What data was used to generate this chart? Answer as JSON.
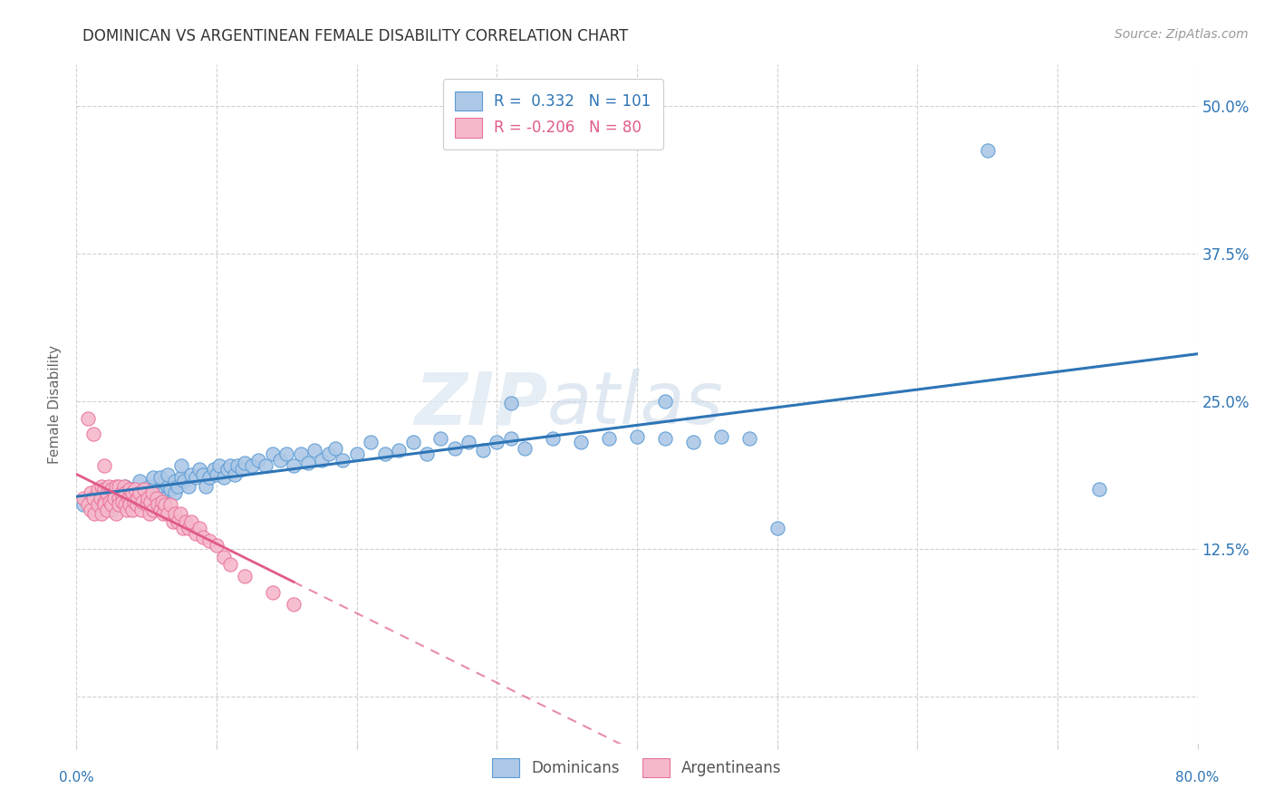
{
  "title": "DOMINICAN VS ARGENTINEAN FEMALE DISABILITY CORRELATION CHART",
  "source": "Source: ZipAtlas.com",
  "ylabel": "Female Disability",
  "yticks": [
    0.0,
    0.125,
    0.25,
    0.375,
    0.5
  ],
  "ytick_labels": [
    "",
    "12.5%",
    "25.0%",
    "37.5%",
    "50.0%"
  ],
  "xlim": [
    0.0,
    0.8
  ],
  "ylim": [
    -0.04,
    0.535
  ],
  "dominican_R": 0.332,
  "dominican_N": 101,
  "argentinean_R": -0.206,
  "argentinean_N": 80,
  "dominican_color": "#adc8e6",
  "argentinean_color": "#f5b8cb",
  "dominican_edge_color": "#5b9bd5",
  "argentinean_edge_color": "#e8739a",
  "dominican_line_color": "#2e75b6",
  "argentinean_line_color": "#e05a8a",
  "watermark_zip": "ZIP",
  "watermark_atlas": "atlas",
  "background_color": "#ffffff",
  "legend_label1": "R =  0.332   N = 101",
  "legend_label2": "R = -0.206   N = 80",
  "dominican_x": [
    0.005,
    0.01,
    0.015,
    0.015,
    0.02,
    0.022,
    0.025,
    0.025,
    0.03,
    0.03,
    0.032,
    0.035,
    0.035,
    0.037,
    0.038,
    0.04,
    0.04,
    0.042,
    0.044,
    0.045,
    0.045,
    0.047,
    0.048,
    0.05,
    0.05,
    0.052,
    0.053,
    0.055,
    0.055,
    0.057,
    0.058,
    0.06,
    0.06,
    0.062,
    0.063,
    0.065,
    0.065,
    0.067,
    0.07,
    0.07,
    0.072,
    0.075,
    0.075,
    0.077,
    0.08,
    0.082,
    0.085,
    0.088,
    0.09,
    0.092,
    0.095,
    0.098,
    0.1,
    0.102,
    0.105,
    0.108,
    0.11,
    0.113,
    0.115,
    0.118,
    0.12,
    0.125,
    0.13,
    0.135,
    0.14,
    0.145,
    0.15,
    0.155,
    0.16,
    0.165,
    0.17,
    0.175,
    0.18,
    0.185,
    0.19,
    0.2,
    0.21,
    0.22,
    0.23,
    0.24,
    0.25,
    0.26,
    0.27,
    0.28,
    0.29,
    0.3,
    0.31,
    0.32,
    0.34,
    0.36,
    0.38,
    0.4,
    0.42,
    0.44,
    0.46,
    0.48,
    0.31,
    0.5,
    0.65,
    0.73,
    0.42
  ],
  "dominican_y": [
    0.162,
    0.168,
    0.165,
    0.158,
    0.162,
    0.17,
    0.158,
    0.172,
    0.165,
    0.175,
    0.162,
    0.168,
    0.178,
    0.162,
    0.172,
    0.165,
    0.175,
    0.168,
    0.162,
    0.172,
    0.182,
    0.168,
    0.175,
    0.162,
    0.172,
    0.178,
    0.168,
    0.175,
    0.185,
    0.172,
    0.165,
    0.175,
    0.185,
    0.172,
    0.168,
    0.178,
    0.188,
    0.175,
    0.172,
    0.182,
    0.178,
    0.185,
    0.195,
    0.182,
    0.178,
    0.188,
    0.185,
    0.192,
    0.188,
    0.178,
    0.185,
    0.192,
    0.188,
    0.195,
    0.185,
    0.192,
    0.195,
    0.188,
    0.195,
    0.192,
    0.198,
    0.195,
    0.2,
    0.195,
    0.205,
    0.2,
    0.205,
    0.195,
    0.205,
    0.198,
    0.208,
    0.2,
    0.205,
    0.21,
    0.2,
    0.205,
    0.215,
    0.205,
    0.208,
    0.215,
    0.205,
    0.218,
    0.21,
    0.215,
    0.208,
    0.215,
    0.218,
    0.21,
    0.218,
    0.215,
    0.218,
    0.22,
    0.218,
    0.215,
    0.22,
    0.218,
    0.248,
    0.142,
    0.462,
    0.175,
    0.25
  ],
  "argentinean_x": [
    0.005,
    0.008,
    0.01,
    0.01,
    0.012,
    0.013,
    0.015,
    0.015,
    0.017,
    0.018,
    0.018,
    0.02,
    0.02,
    0.02,
    0.022,
    0.022,
    0.023,
    0.024,
    0.025,
    0.025,
    0.027,
    0.028,
    0.028,
    0.03,
    0.03,
    0.03,
    0.032,
    0.033,
    0.034,
    0.035,
    0.035,
    0.036,
    0.037,
    0.038,
    0.038,
    0.04,
    0.04,
    0.041,
    0.042,
    0.043,
    0.044,
    0.045,
    0.046,
    0.047,
    0.048,
    0.05,
    0.051,
    0.052,
    0.053,
    0.054,
    0.055,
    0.057,
    0.058,
    0.06,
    0.061,
    0.062,
    0.063,
    0.065,
    0.067,
    0.069,
    0.07,
    0.072,
    0.074,
    0.076,
    0.078,
    0.08,
    0.082,
    0.085,
    0.088,
    0.09,
    0.095,
    0.1,
    0.105,
    0.11,
    0.12,
    0.14,
    0.155,
    0.008,
    0.012,
    0.02
  ],
  "argentinean_y": [
    0.168,
    0.162,
    0.172,
    0.158,
    0.168,
    0.155,
    0.175,
    0.162,
    0.168,
    0.178,
    0.155,
    0.165,
    0.175,
    0.162,
    0.172,
    0.158,
    0.178,
    0.165,
    0.175,
    0.162,
    0.168,
    0.178,
    0.155,
    0.168,
    0.178,
    0.162,
    0.172,
    0.165,
    0.178,
    0.162,
    0.172,
    0.158,
    0.168,
    0.175,
    0.162,
    0.172,
    0.158,
    0.165,
    0.175,
    0.162,
    0.168,
    0.172,
    0.158,
    0.165,
    0.175,
    0.162,
    0.168,
    0.155,
    0.165,
    0.172,
    0.158,
    0.168,
    0.162,
    0.158,
    0.165,
    0.155,
    0.162,
    0.155,
    0.162,
    0.148,
    0.155,
    0.148,
    0.155,
    0.142,
    0.148,
    0.142,
    0.148,
    0.138,
    0.142,
    0.135,
    0.132,
    0.128,
    0.118,
    0.112,
    0.102,
    0.088,
    0.078,
    0.235,
    0.222,
    0.195
  ]
}
